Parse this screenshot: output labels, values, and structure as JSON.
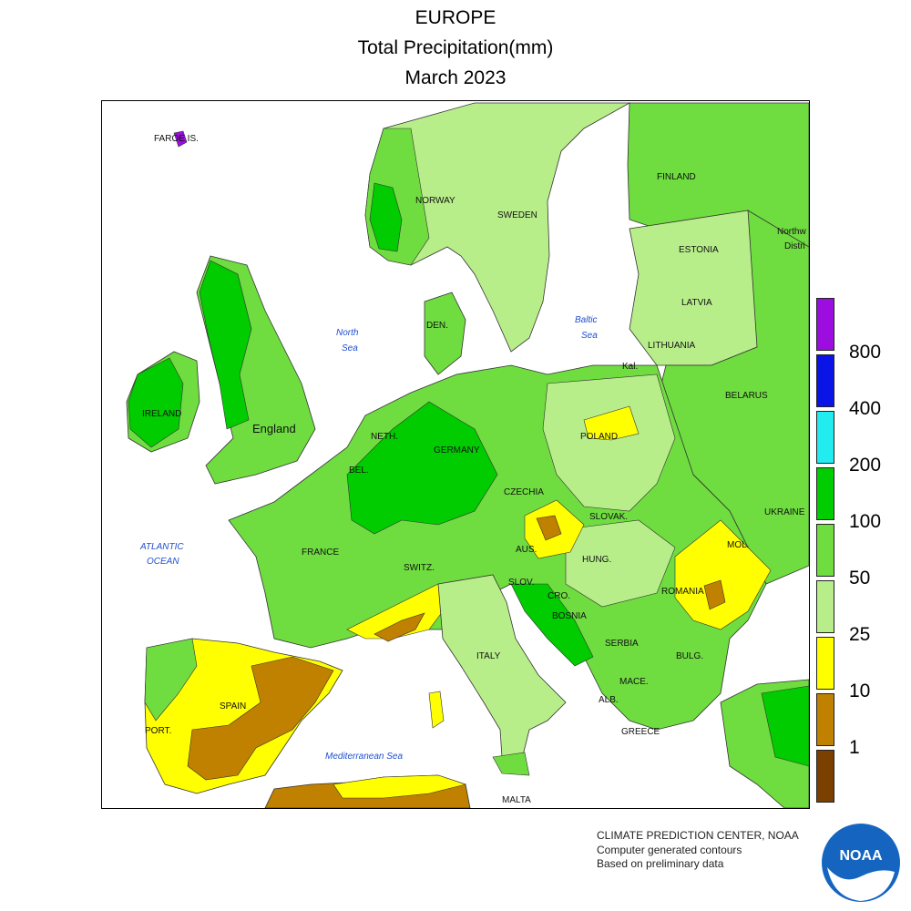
{
  "title": {
    "region": "EUROPE",
    "variable": "Total Precipitation(mm)",
    "period": "March 2023"
  },
  "legend": {
    "ticks": [
      "800",
      "400",
      "200",
      "100",
      "50",
      "25",
      "10",
      "1"
    ],
    "colors": [
      "#9c0ee0",
      "#0a14e6",
      "#22ecf0",
      "#00cc00",
      "#6fdc40",
      "#b8ee8a",
      "#ffff00",
      "#c08000",
      "#7a4000"
    ]
  },
  "map_labels": {
    "countries": [
      "FAROE IS.",
      "NORWAY",
      "SWEDEN",
      "FINLAND",
      "ESTONIA",
      "LATVIA",
      "LITHUANIA",
      "Kal.",
      "BELARUS",
      "DEN.",
      "IRELAND",
      "England",
      "NETH.",
      "BEL.",
      "GERMANY",
      "POLAND",
      "CZECHIA",
      "SLOVAK.",
      "UKRAINE",
      "FRANCE",
      "AUS.",
      "SWITZ.",
      "SLOV.",
      "CRO.",
      "HUNG.",
      "MOL.",
      "ROMANIA",
      "BOSNIA",
      "SERBIA",
      "BULG.",
      "MACE.",
      "ALB.",
      "GREECE",
      "ITALY",
      "SPAIN",
      "PORT.",
      "MALTA",
      "Northw",
      "Distri"
    ],
    "seas": {
      "north_sea_1": "North",
      "north_sea_2": "Sea",
      "baltic_1": "Baltic",
      "baltic_2": "Sea",
      "atlantic_1": "ATLANTIC",
      "atlantic_2": "OCEAN",
      "med": "Mediterranean Sea"
    }
  },
  "credits": {
    "line1": "CLIMATE PREDICTION CENTER, NOAA",
    "line2": "Computer generated contours",
    "line3": "Based on preliminary data"
  },
  "logo_text": "NOAA"
}
